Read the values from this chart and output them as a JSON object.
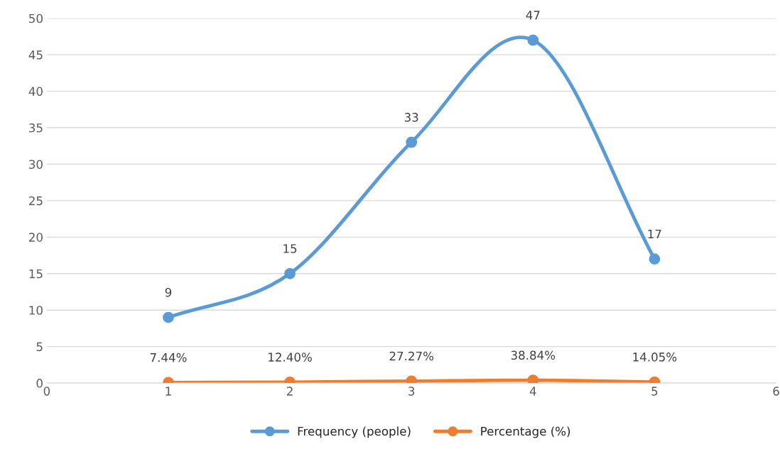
{
  "chart_data": {
    "type": "line",
    "x": [
      1,
      2,
      3,
      4,
      5
    ],
    "series": [
      {
        "name": "Frequency (people)",
        "color": "#5b9bd5",
        "values": [
          9,
          15,
          33,
          47,
          17
        ],
        "value_labels": [
          "9",
          "15",
          "33",
          "47",
          "17"
        ]
      },
      {
        "name": "Percentage (%)",
        "color": "#ed7d31",
        "values": [
          0.0744,
          0.124,
          0.2727,
          0.3884,
          0.1405
        ],
        "value_labels": [
          "7.44%",
          "12.40%",
          "27.27%",
          "38.84%",
          "14.05%"
        ]
      }
    ],
    "xlim": [
      0,
      6
    ],
    "xticks": [
      0,
      1,
      2,
      3,
      4,
      5,
      6
    ],
    "ylim": [
      0,
      50
    ],
    "yticks": [
      0,
      5,
      10,
      15,
      20,
      25,
      30,
      35,
      40,
      45,
      50
    ],
    "grid": "y",
    "legend": "bottom",
    "marker": "circle",
    "line_style": "solid"
  }
}
